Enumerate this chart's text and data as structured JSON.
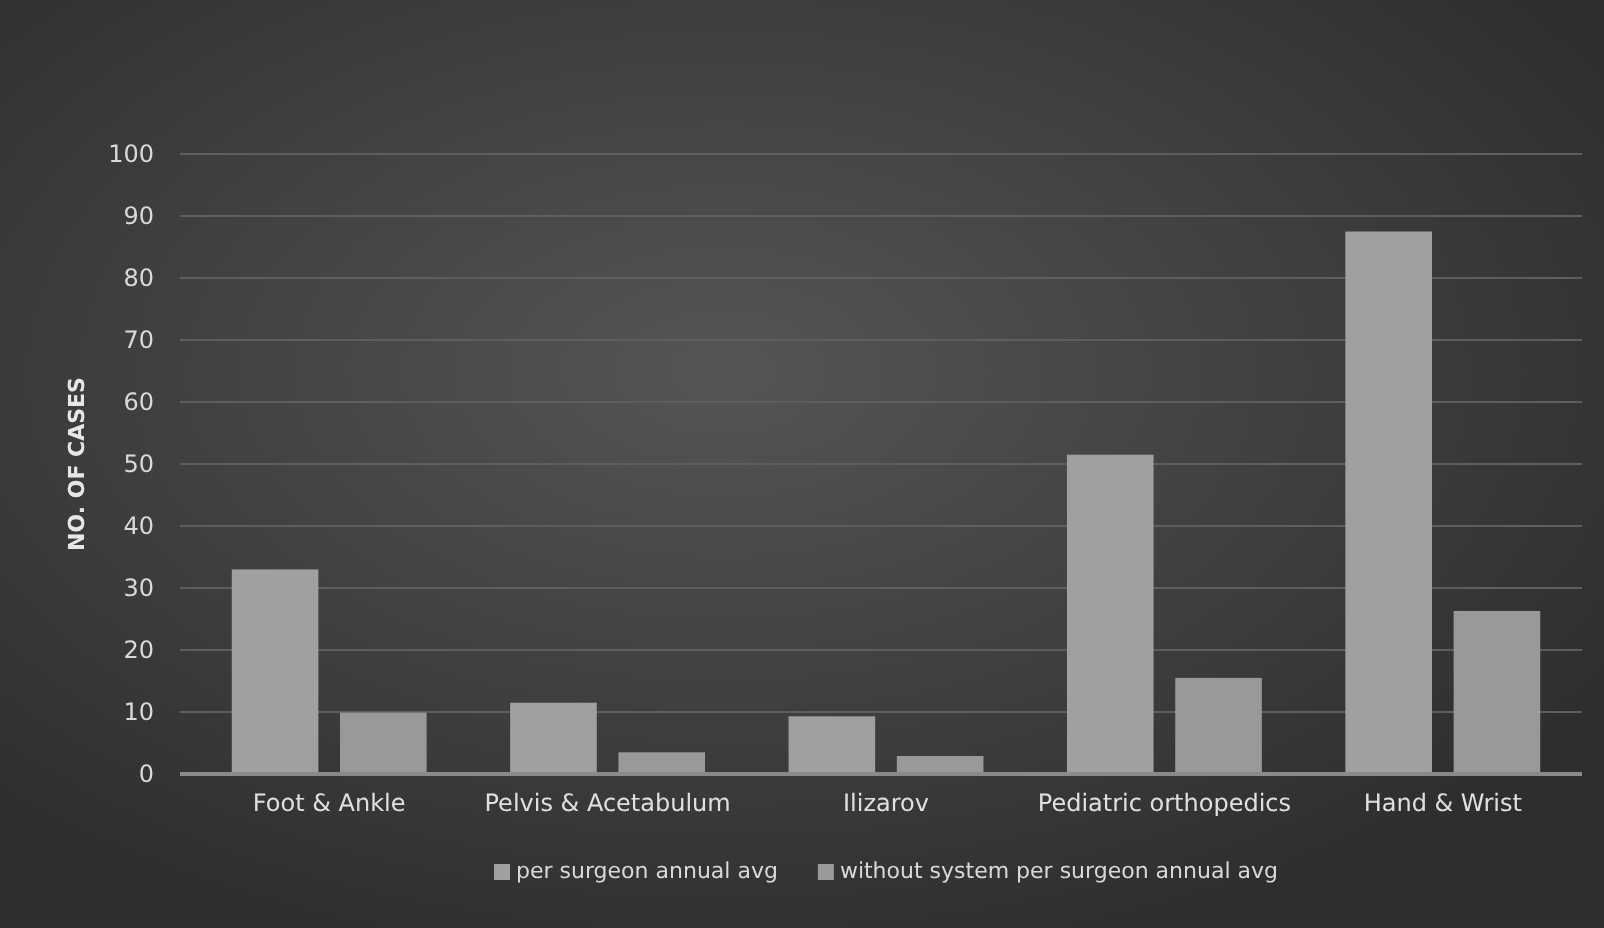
{
  "chart_data": {
    "type": "bar",
    "ylabel": "NO. OF CASES",
    "categories": [
      "Foot & Ankle",
      "Pelvis & Acetabulum",
      "Ilizarov",
      "Pediatric orthopedics",
      "Hand & Wrist"
    ],
    "series": [
      {
        "name": "per surgeon annual avg",
        "color": "#a0a0a0",
        "values": [
          33,
          11.5,
          9.3,
          51.5,
          87.5
        ]
      },
      {
        "name": "without system per surgeon annual avg",
        "color": "#999999",
        "values": [
          9.9,
          3.5,
          2.9,
          15.5,
          26.3
        ]
      }
    ],
    "ylim": [
      0,
      100
    ],
    "yticks": [
      0,
      10,
      20,
      30,
      40,
      50,
      60,
      70,
      80,
      90,
      100
    ],
    "grid": "y",
    "legend": "bottom"
  }
}
